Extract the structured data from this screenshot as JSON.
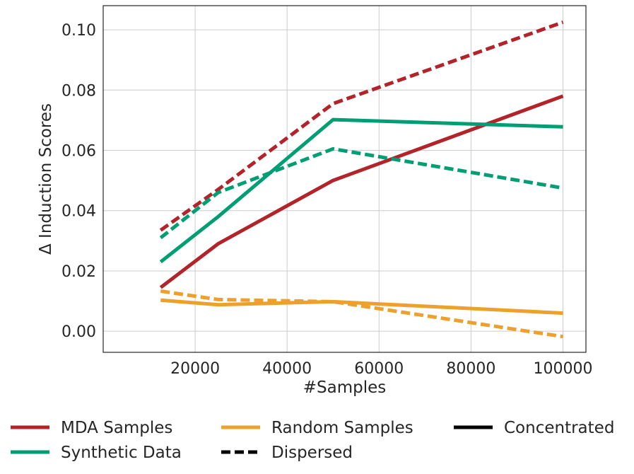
{
  "chart_data": {
    "type": "line",
    "title": "",
    "xlabel": "#Samples",
    "ylabel": "Δ Induction Scores",
    "xlim": [
      0,
      105000
    ],
    "ylim": [
      -0.007,
      0.108
    ],
    "x_ticks": [
      20000,
      40000,
      60000,
      80000,
      100000
    ],
    "x_tick_labels": [
      "20000",
      "40000",
      "60000",
      "80000",
      "100000"
    ],
    "y_ticks": [
      0.0,
      0.02,
      0.04,
      0.06,
      0.08,
      0.1
    ],
    "y_tick_labels": [
      "0.00",
      "0.02",
      "0.04",
      "0.06",
      "0.08",
      "0.10"
    ],
    "grid": true,
    "legend_position": "bottom",
    "x": [
      12500,
      25000,
      50000,
      100000
    ],
    "series": [
      {
        "name": "MDA Samples",
        "variant": "Concentrated",
        "color": "#b2232a",
        "dash": "solid",
        "values": [
          0.0145,
          0.029,
          0.05,
          0.078
        ]
      },
      {
        "name": "MDA Samples",
        "variant": "Dispersed",
        "color": "#b2232a",
        "dash": "dashed",
        "values": [
          0.0335,
          0.047,
          0.0755,
          0.1025
        ]
      },
      {
        "name": "Synthetic Data",
        "variant": "Concentrated",
        "color": "#009e73",
        "dash": "solid",
        "values": [
          0.023,
          0.038,
          0.0702,
          0.0678
        ]
      },
      {
        "name": "Synthetic Data",
        "variant": "Dispersed",
        "color": "#009e73",
        "dash": "dashed",
        "values": [
          0.031,
          0.046,
          0.0605,
          0.0475
        ]
      },
      {
        "name": "Random Samples",
        "variant": "Concentrated",
        "color": "#eea02c",
        "dash": "solid",
        "values": [
          0.0103,
          0.0088,
          0.0098,
          0.006
        ]
      },
      {
        "name": "Random Samples",
        "variant": "Dispersed",
        "color": "#eea02c",
        "dash": "dashed",
        "values": [
          0.0133,
          0.0105,
          0.0098,
          -0.0018
        ]
      }
    ],
    "legend": [
      {
        "label": "MDA Samples",
        "color": "#b2232a",
        "dash": "solid"
      },
      {
        "label": "Random Samples",
        "color": "#eea02c",
        "dash": "solid"
      },
      {
        "label": "Concentrated",
        "color": "#000000",
        "dash": "solid"
      },
      {
        "label": "Synthetic Data",
        "color": "#009e73",
        "dash": "solid"
      },
      {
        "label": "Dispersed",
        "color": "#000000",
        "dash": "dashed"
      }
    ]
  }
}
